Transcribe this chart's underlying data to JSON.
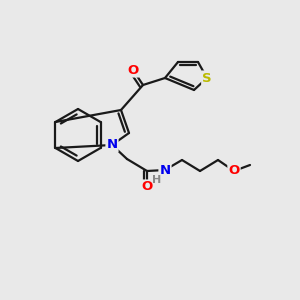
{
  "background_color": "#e9e9e9",
  "bond_color": "#1a1a1a",
  "atom_colors": {
    "O": "#ff0000",
    "N": "#0000ee",
    "S": "#bbbb00",
    "H": "#888888"
  },
  "figsize": [
    3.0,
    3.0
  ],
  "dpi": 100
}
